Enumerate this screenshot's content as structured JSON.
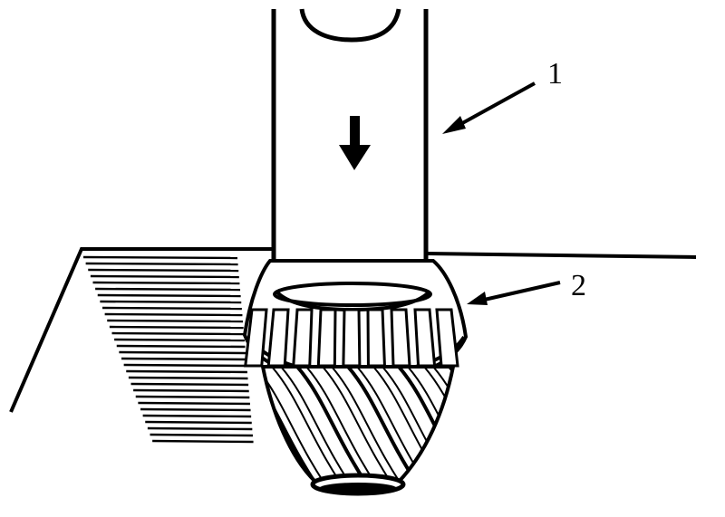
{
  "figure": {
    "callouts": [
      {
        "id": "1",
        "label": "1"
      },
      {
        "id": "2",
        "label": "2"
      }
    ],
    "ink_color": "#000000",
    "background_color": "#ffffff"
  }
}
